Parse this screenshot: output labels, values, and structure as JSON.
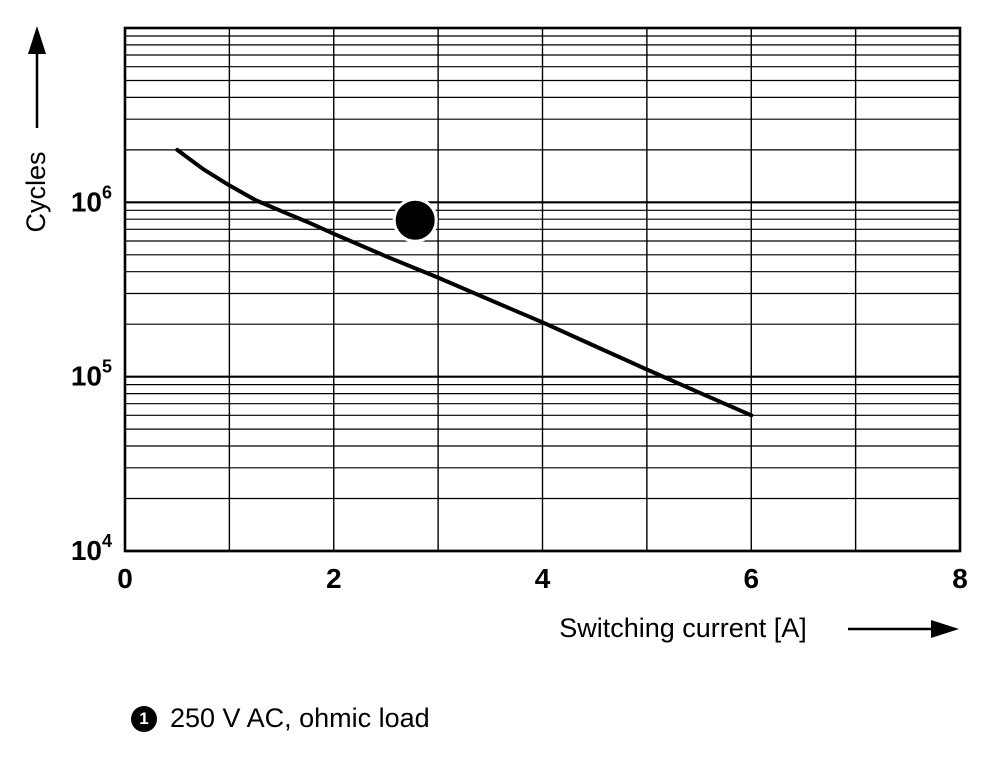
{
  "colors": {
    "foreground": "#000000",
    "background": "#ffffff",
    "badge_fill": "#000000",
    "badge_text": "#ffffff"
  },
  "chart_data": {
    "type": "line",
    "title": "",
    "xlabel": "Switching current [A]",
    "ylabel": "Cycles",
    "x_axis": {
      "min": 0,
      "max": 8,
      "major_ticks": [
        0,
        2,
        4,
        6,
        8
      ],
      "minor_step": 1
    },
    "y_axis": {
      "scale": "log",
      "min_exp": 4,
      "max_exp": 7,
      "labeled_exponents": [
        4,
        5,
        6
      ],
      "base_label": "10"
    },
    "grid": true,
    "legend_position": "bottom-left",
    "series": [
      {
        "id": "1",
        "name": "250 V AC, ohmic load",
        "color": "#000000",
        "x": [
          0.5,
          0.75,
          1,
          1.25,
          1.5,
          1.75,
          2,
          2.5,
          3,
          3.5,
          4,
          4.5,
          5,
          5.5,
          6
        ],
        "y": [
          2000000,
          1550000,
          1250000,
          1030000,
          890000,
          770000,
          660000,
          490000,
          370000,
          275000,
          205000,
          150000,
          110000,
          81000,
          60000
        ]
      }
    ],
    "curve_label": {
      "text": "1",
      "x": 2.78,
      "y": 790000
    }
  },
  "legend": {
    "items": [
      {
        "marker": "1",
        "label": "250 V AC, ohmic load"
      }
    ]
  }
}
